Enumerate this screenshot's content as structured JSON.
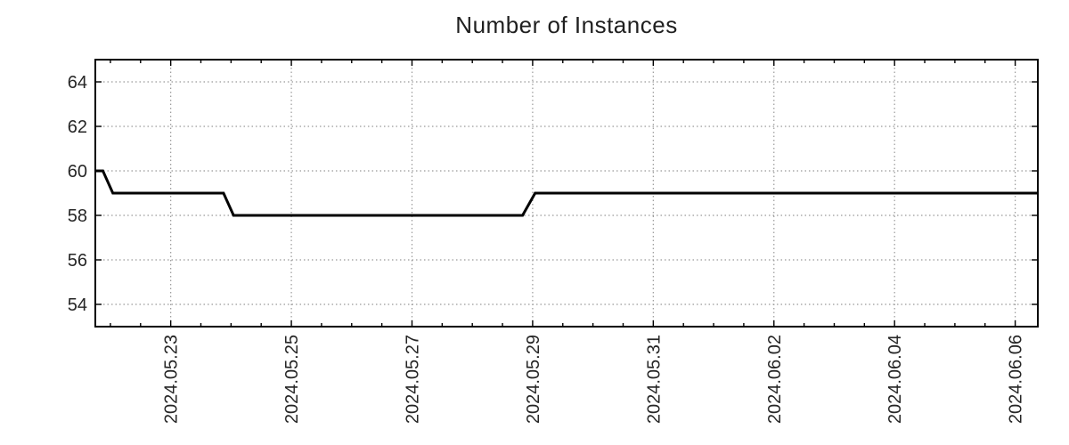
{
  "chart_data": {
    "type": "line",
    "title": "Number of Instances",
    "x_axis": {
      "tick_labels": [
        "2024.05.23",
        "2024.05.25",
        "2024.05.27",
        "2024.05.29",
        "2024.05.31",
        "2024.06.02",
        "2024.06.04",
        "2024.06.06"
      ],
      "tick_hours": [
        30,
        78,
        126,
        174,
        222,
        270,
        318,
        366
      ],
      "minor_tick_start_hour": 6,
      "minor_tick_step_hours": 12,
      "range_hours": [
        0,
        375
      ]
    },
    "y_axis": {
      "tick_labels": [
        "54",
        "56",
        "58",
        "60",
        "62",
        "64"
      ],
      "tick_values": [
        54,
        56,
        58,
        60,
        62,
        64
      ],
      "range": [
        53,
        65
      ]
    },
    "series": [
      {
        "name": "instances",
        "color": "#000000",
        "line_width": 3,
        "points": [
          [
            0,
            60
          ],
          [
            3,
            60
          ],
          [
            7,
            59
          ],
          [
            51,
            59
          ],
          [
            55,
            58
          ],
          [
            170,
            58
          ],
          [
            175,
            59
          ],
          [
            375,
            59
          ]
        ]
      }
    ],
    "grid": {
      "color": "#999999",
      "style": "dotted"
    },
    "frame_color": "#000000",
    "text_color": "#262626",
    "background": "#ffffff",
    "legend": "none"
  }
}
